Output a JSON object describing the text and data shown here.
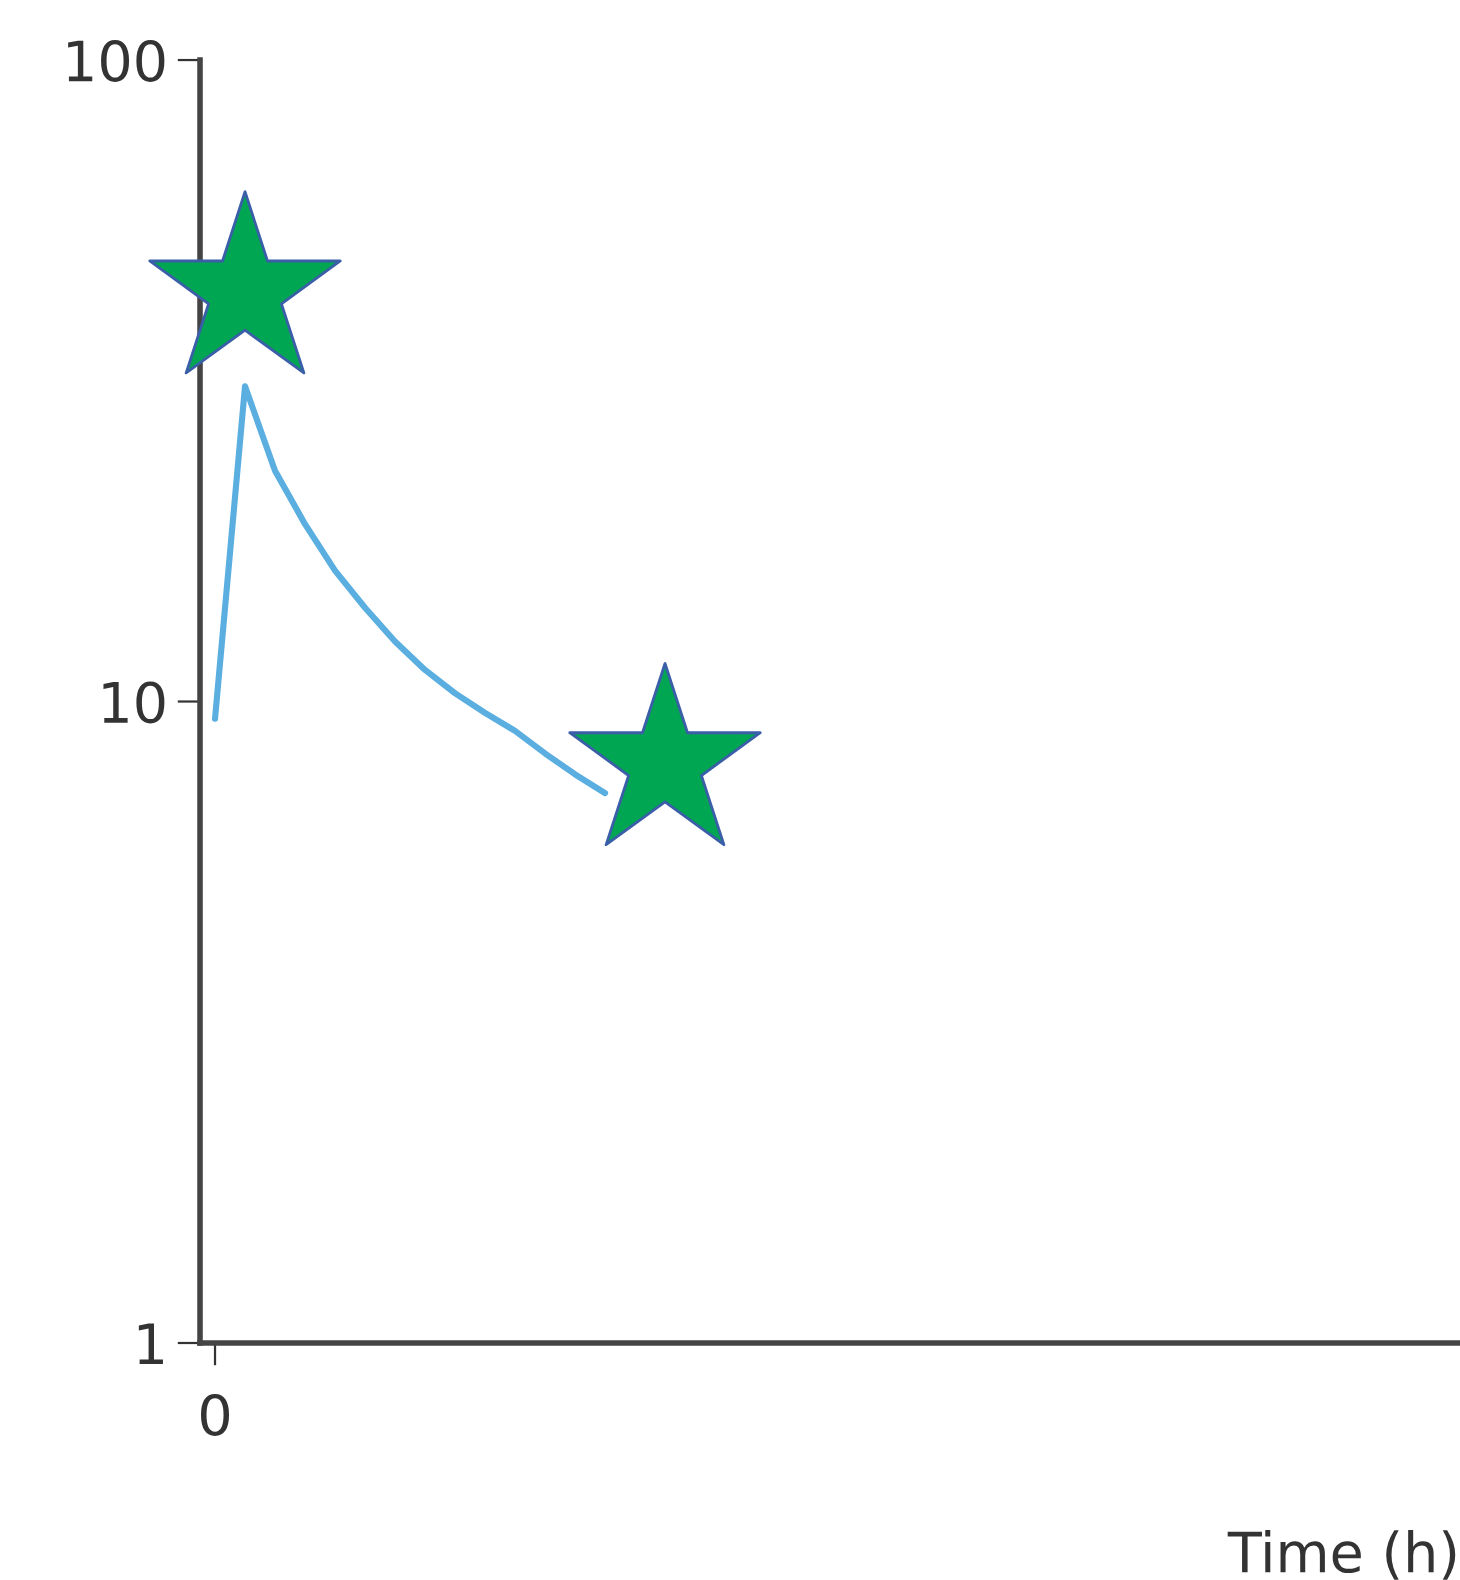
{
  "chart_data": {
    "type": "line",
    "xlabel": "Time (h)",
    "categories": [
      "0",
      null,
      null,
      null,
      null,
      null,
      null,
      null,
      null,
      null,
      null,
      null,
      null,
      null,
      null,
      null,
      null,
      null,
      null,
      null,
      null,
      null,
      null,
      null,
      null,
      null,
      null,
      null,
      null,
      null,
      null,
      null,
      null,
      null,
      null,
      null,
      null,
      null,
      null,
      null,
      null,
      null
    ],
    "series": [
      {
        "color": "#5aaee0",
        "marker": "none",
        "line_style": "solid",
        "values": [
          9.4,
          31,
          22.9,
          18.9,
          16.0,
          14.0,
          12.4,
          11.2,
          10.3,
          9.6,
          9.0,
          8.3,
          7.7,
          7.2,
          null,
          null,
          null,
          null,
          null,
          null,
          null,
          null,
          null,
          null,
          null,
          null,
          null,
          null,
          null,
          null,
          null,
          null,
          null,
          null,
          null,
          null,
          null,
          null,
          null,
          null,
          null,
          null
        ]
      },
      {
        "type": "scatter",
        "color": "#00a651",
        "marker": "star",
        "values": [
          null,
          43.5,
          null,
          null,
          null,
          null,
          null,
          null,
          null,
          null,
          null,
          null,
          null,
          null,
          null,
          8.0,
          null,
          null,
          null,
          null,
          null,
          null,
          null,
          null,
          null,
          null,
          null,
          null,
          null,
          null,
          null,
          null,
          null,
          null,
          null,
          null,
          null,
          null,
          null,
          null,
          null,
          null
        ]
      }
    ],
    "log": "y",
    "ylim": [
      1,
      100
    ],
    "yticks": [
      1,
      10,
      100
    ],
    "grid": false,
    "legend": false
  }
}
